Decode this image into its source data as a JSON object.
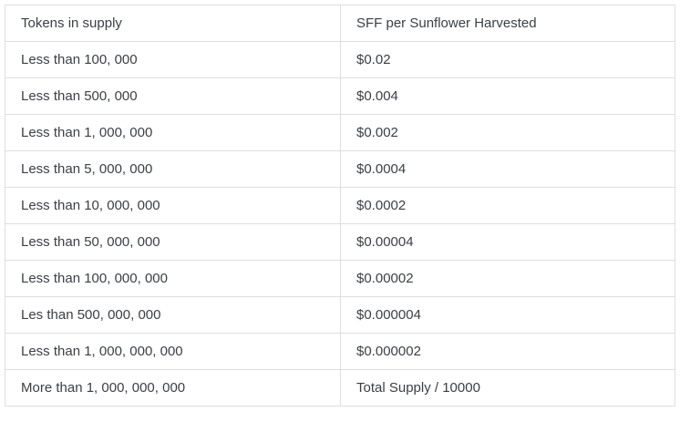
{
  "table": {
    "headers": [
      "Tokens in supply",
      "SFF per Sunflower Harvested"
    ],
    "rows": [
      [
        "Less than 100, 000",
        "$0.02"
      ],
      [
        "Less than 500, 000",
        "$0.004"
      ],
      [
        "Less than 1, 000, 000",
        "$0.002"
      ],
      [
        "Less than 5, 000, 000",
        "$0.0004"
      ],
      [
        "Less than 10, 000, 000",
        "$0.0002"
      ],
      [
        "Less than 50, 000, 000",
        "$0.00004"
      ],
      [
        "Less than 100, 000, 000",
        "$0.00002"
      ],
      [
        "Les than 500, 000, 000",
        "$0.000004"
      ],
      [
        "Less than 1, 000, 000, 000",
        "$0.000002"
      ],
      [
        "More than 1, 000, 000, 000",
        "Total Supply / 10000"
      ]
    ]
  }
}
